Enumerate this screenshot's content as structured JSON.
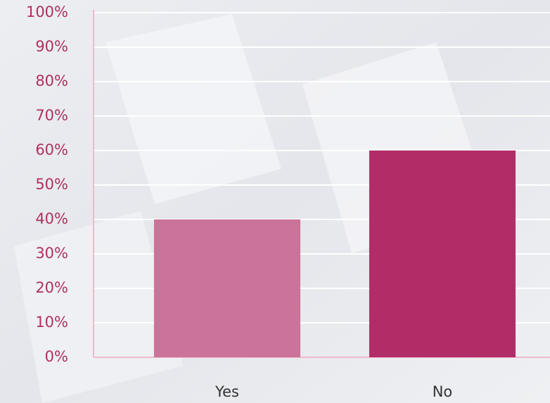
{
  "chart_data": {
    "type": "bar",
    "categories": [
      "Yes",
      "No"
    ],
    "values": [
      40,
      60
    ],
    "colors": [
      "#cc7399",
      "#b22d68"
    ],
    "ylim": [
      0,
      100
    ],
    "yticks": [
      {
        "value": 0,
        "label": "0%"
      },
      {
        "value": 10,
        "label": "10%"
      },
      {
        "value": 20,
        "label": "20%"
      },
      {
        "value": 30,
        "label": "30%"
      },
      {
        "value": 40,
        "label": "40%"
      },
      {
        "value": 50,
        "label": "50%"
      },
      {
        "value": 60,
        "label": "60%"
      },
      {
        "value": 70,
        "label": "70%"
      },
      {
        "value": 80,
        "label": "80%"
      },
      {
        "value": 90,
        "label": "90%"
      },
      {
        "value": 100,
        "label": "100%"
      }
    ],
    "grid": true
  }
}
